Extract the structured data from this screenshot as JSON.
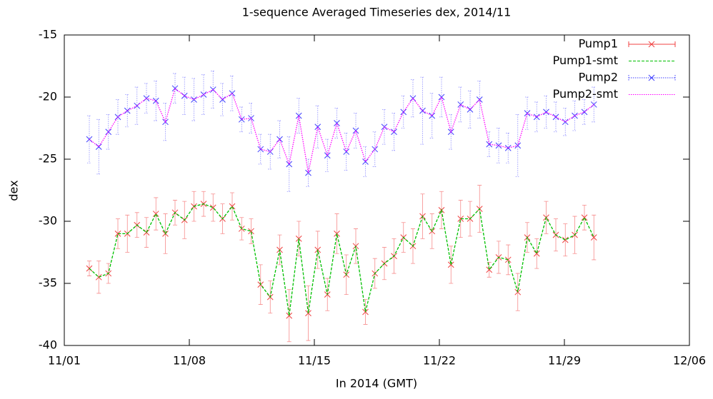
{
  "chart_data": {
    "type": "line",
    "title": "1-sequence Averaged Timeseries dex, 2014/11",
    "xlabel": "In 2014 (GMT)",
    "ylabel": "dex",
    "x": [
      2.4,
      2.93,
      3.47,
      4.0,
      4.53,
      5.07,
      5.6,
      6.13,
      6.66,
      7.2,
      7.73,
      8.26,
      8.8,
      9.33,
      9.86,
      10.4,
      10.93,
      11.46,
      11.99,
      12.53,
      13.06,
      13.59,
      14.13,
      14.66,
      15.19,
      15.73,
      16.26,
      16.79,
      17.32,
      17.86,
      18.39,
      18.92,
      19.46,
      19.99,
      20.52,
      21.06,
      21.59,
      22.12,
      22.65,
      23.19,
      23.72,
      24.25,
      24.79,
      25.32,
      25.85,
      26.39,
      26.92,
      27.45,
      27.98,
      28.52,
      29.05,
      29.58,
      30.12,
      30.65
    ],
    "xlim": [
      1,
      36
    ],
    "xticks": [
      {
        "value": 1,
        "label": "11/01"
      },
      {
        "value": 8,
        "label": "11/08"
      },
      {
        "value": 15,
        "label": "11/15"
      },
      {
        "value": 22,
        "label": "11/22"
      },
      {
        "value": 29,
        "label": "11/29"
      },
      {
        "value": 36,
        "label": "12/06"
      }
    ],
    "ylim": [
      -40,
      -15
    ],
    "yticks": [
      -40,
      -35,
      -30,
      -25,
      -20,
      -15
    ],
    "legend": "upper right",
    "series": [
      {
        "name": "Pump1",
        "color": "#f04040",
        "style": "points-errorbars",
        "values": [
          -33.8,
          -34.5,
          -34.2,
          -31.0,
          -31.0,
          -30.3,
          -30.9,
          -29.4,
          -31.0,
          -29.3,
          -29.9,
          -28.8,
          -28.6,
          -28.9,
          -29.8,
          -28.8,
          -30.6,
          -30.8,
          -35.1,
          -36.1,
          -32.3,
          -37.6,
          -31.4,
          -37.4,
          -32.3,
          -35.9,
          -31.0,
          -34.3,
          -32.0,
          -37.3,
          -34.2,
          -33.4,
          -32.8,
          -31.3,
          -32.0,
          -29.6,
          -30.8,
          -29.1,
          -33.5,
          -29.8,
          -29.8,
          -29.0,
          -33.9,
          -32.9,
          -33.1,
          -35.7,
          -31.3,
          -32.6,
          -29.7,
          -31.1,
          -31.5,
          -31.1,
          -29.7,
          -31.3
        ],
        "errors": [
          0.6,
          1.3,
          0.8,
          1.2,
          1.5,
          1.0,
          1.2,
          1.3,
          1.6,
          1.0,
          1.5,
          1.2,
          1.0,
          1.1,
          1.2,
          1.1,
          0.9,
          1.0,
          1.6,
          1.3,
          1.2,
          2.1,
          1.4,
          2.2,
          1.5,
          1.3,
          1.6,
          1.6,
          1.4,
          1.0,
          1.2,
          1.3,
          1.4,
          1.2,
          1.4,
          1.8,
          1.4,
          1.5,
          1.5,
          1.5,
          1.4,
          1.9,
          0.6,
          1.3,
          1.2,
          1.5,
          1.2,
          1.2,
          1.3,
          1.3,
          1.3,
          1.5,
          1.0,
          1.8
        ]
      },
      {
        "name": "Pump1-smt",
        "color": "#00c000",
        "style": "dashed-line",
        "values": [
          -33.8,
          -34.5,
          -34.2,
          -31.0,
          -31.0,
          -30.3,
          -30.9,
          -29.4,
          -31.0,
          -29.3,
          -29.9,
          -28.8,
          -28.6,
          -28.9,
          -29.8,
          -28.8,
          -30.6,
          -30.8,
          -35.1,
          -36.1,
          -32.3,
          -37.6,
          -31.4,
          -37.4,
          -32.3,
          -35.9,
          -31.0,
          -34.3,
          -32.0,
          -37.3,
          -34.2,
          -33.4,
          -32.8,
          -31.3,
          -32.0,
          -29.6,
          -30.8,
          -29.1,
          -33.5,
          -29.8,
          -29.8,
          -29.0,
          -33.9,
          -32.9,
          -33.1,
          -35.7,
          -31.3,
          -32.6,
          -29.7,
          -31.1,
          -31.5,
          -31.1,
          -29.7,
          -31.3
        ]
      },
      {
        "name": "Pump2",
        "color": "#4040ff",
        "style": "points-errorbars",
        "values": [
          -23.4,
          -24.0,
          -22.8,
          -21.6,
          -21.1,
          -20.7,
          -20.1,
          -20.3,
          -22.0,
          -19.3,
          -19.9,
          -20.2,
          -19.8,
          -19.4,
          -20.2,
          -19.7,
          -21.8,
          -21.7,
          -24.2,
          -24.4,
          -23.4,
          -25.4,
          -21.5,
          -26.1,
          -22.4,
          -24.7,
          -22.1,
          -24.4,
          -22.7,
          -25.2,
          -24.2,
          -22.4,
          -22.8,
          -21.2,
          -20.1,
          -21.1,
          -21.5,
          -20.0,
          -22.8,
          -20.6,
          -21.0,
          -20.2,
          -23.8,
          -23.9,
          -24.1,
          -23.9,
          -21.3,
          -21.6,
          -21.2,
          -21.6,
          -22.0,
          -21.5,
          -21.2,
          -20.6
        ],
        "errors": [
          1.9,
          2.2,
          1.4,
          1.4,
          1.3,
          1.5,
          1.2,
          1.6,
          1.5,
          1.2,
          1.5,
          1.7,
          1.6,
          1.5,
          1.3,
          1.4,
          1.0,
          1.2,
          1.2,
          1.4,
          1.5,
          2.2,
          1.4,
          1.1,
          1.7,
          1.3,
          1.2,
          1.5,
          1.4,
          1.2,
          1.4,
          1.4,
          1.5,
          1.3,
          1.5,
          2.7,
          1.8,
          1.6,
          1.4,
          1.4,
          1.5,
          1.5,
          1.0,
          1.4,
          1.2,
          2.5,
          1.3,
          1.2,
          1.3,
          1.2,
          1.1,
          1.2,
          1.0,
          1.4
        ]
      },
      {
        "name": "Pump2-smt",
        "color": "#ff00ff",
        "style": "dotted-line",
        "values": [
          -23.4,
          -24.0,
          -22.8,
          -21.6,
          -21.1,
          -20.7,
          -20.1,
          -20.3,
          -22.0,
          -19.3,
          -19.9,
          -20.2,
          -19.8,
          -19.4,
          -20.2,
          -19.7,
          -21.8,
          -21.7,
          -24.2,
          -24.4,
          -23.4,
          -25.4,
          -21.5,
          -26.1,
          -22.4,
          -24.7,
          -22.1,
          -24.4,
          -22.7,
          -25.2,
          -24.2,
          -22.4,
          -22.8,
          -21.2,
          -20.1,
          -21.1,
          -21.5,
          -20.0,
          -22.8,
          -20.6,
          -21.0,
          -20.2,
          -23.8,
          -23.9,
          -24.1,
          -23.9,
          -21.3,
          -21.6,
          -21.2,
          -21.6,
          -22.0,
          -21.5,
          -21.2,
          -20.6
        ]
      }
    ]
  }
}
